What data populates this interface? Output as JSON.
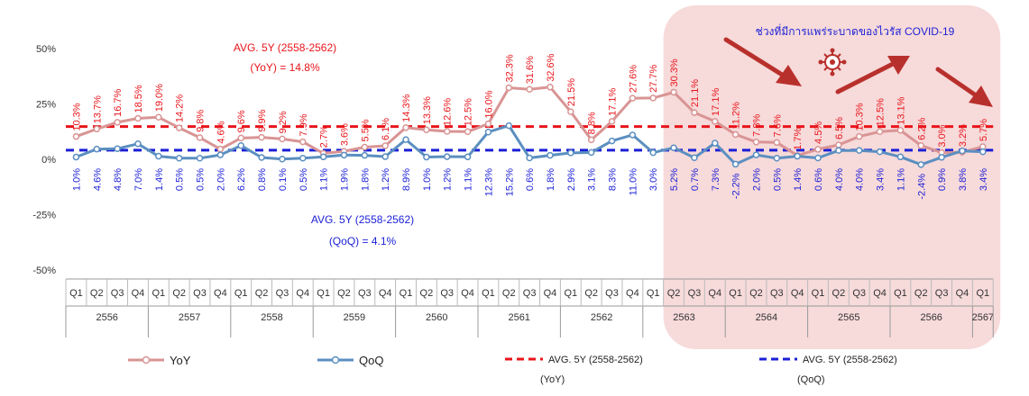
{
  "chart_data": {
    "type": "line",
    "quarters": [
      "Q1",
      "Q2",
      "Q3",
      "Q4",
      "Q1",
      "Q2",
      "Q3",
      "Q4",
      "Q1",
      "Q2",
      "Q3",
      "Q4",
      "Q1",
      "Q2",
      "Q3",
      "Q4",
      "Q1",
      "Q2",
      "Q3",
      "Q4",
      "Q1",
      "Q2",
      "Q3",
      "Q4",
      "Q1",
      "Q2",
      "Q3",
      "Q4",
      "Q1",
      "Q2",
      "Q3",
      "Q4",
      "Q1",
      "Q2",
      "Q3",
      "Q4",
      "Q1",
      "Q2",
      "Q3",
      "Q4",
      "Q1",
      "Q2",
      "Q3",
      "Q4",
      "Q1"
    ],
    "years": [
      {
        "label": "2556",
        "quarters": 4
      },
      {
        "label": "2557",
        "quarters": 4
      },
      {
        "label": "2558",
        "quarters": 4
      },
      {
        "label": "2559",
        "quarters": 4
      },
      {
        "label": "2560",
        "quarters": 4
      },
      {
        "label": "2561",
        "quarters": 4
      },
      {
        "label": "2562",
        "quarters": 4
      },
      {
        "label": "2563",
        "quarters": 4
      },
      {
        "label": "2564",
        "quarters": 4
      },
      {
        "label": "2565",
        "quarters": 4
      },
      {
        "label": "2566",
        "quarters": 4
      },
      {
        "label": "2567",
        "quarters": 1
      }
    ],
    "series": [
      {
        "name": "YoY",
        "color": "#d99494",
        "values": [
          10.3,
          13.7,
          16.7,
          18.5,
          19.0,
          14.2,
          9.8,
          4.6,
          9.6,
          9.9,
          9.2,
          7.9,
          2.7,
          3.6,
          5.5,
          6.1,
          14.3,
          13.3,
          12.6,
          12.5,
          16.0,
          32.3,
          31.6,
          32.6,
          21.5,
          8.8,
          17.1,
          27.6,
          27.7,
          30.3,
          21.1,
          17.1,
          11.2,
          7.8,
          7.6,
          1.7,
          4.5,
          6.5,
          10.3,
          12.5,
          13.1,
          6.2,
          3.0,
          3.2,
          5.7
        ],
        "labels": [
          "10.3%",
          "13.7%",
          "16.7%",
          "18.5%",
          "19.0%",
          "14.2%",
          "9.8%",
          "4.6%",
          "9.6%",
          "9.9%",
          "9.2%",
          "7.9%",
          "2.7%",
          "3.6%",
          "5.5%",
          "6.1%",
          "14.3%",
          "13.3%",
          "12.6%",
          "12.5%",
          "16.0%",
          "32.3%",
          "31.6%",
          "32.6%",
          "21.5%",
          "8.8%",
          "17.1%",
          "27.6%",
          "27.7%",
          "30.3%",
          "21.1%",
          "17.1%",
          "11.2%",
          "7.8%",
          "7.6%",
          "1.7%",
          "4.5%",
          "6.5%",
          "10.3%",
          "12.5%",
          "13.1%",
          "6.2%",
          "3.0%",
          "3.2%",
          "5.7%"
        ]
      },
      {
        "name": "QoQ",
        "color": "#5b8fc0",
        "values": [
          1.0,
          4.6,
          4.8,
          7.0,
          1.4,
          0.5,
          0.5,
          2.0,
          6.2,
          0.8,
          0.1,
          0.5,
          1.1,
          1.9,
          1.8,
          1.2,
          8.9,
          1.0,
          1.2,
          1.1,
          12.3,
          15.2,
          0.6,
          1.8,
          2.9,
          3.1,
          8.3,
          11.0,
          3.0,
          5.2,
          0.7,
          7.3,
          -2.2,
          2.0,
          0.5,
          1.4,
          0.6,
          4.0,
          4.0,
          3.4,
          1.1,
          -2.4,
          0.9,
          3.8,
          3.4
        ],
        "labels": [
          "1.0%",
          "4.6%",
          "4.8%",
          "7.0%",
          "1.4%",
          "0.5%",
          "0.5%",
          "2.0%",
          "6.2%",
          "0.8%",
          "0.1%",
          "0.5%",
          "1.1%",
          "1.9%",
          "1.8%",
          "1.2%",
          "8.9%",
          "1.0%",
          "1.2%",
          "1.1%",
          "12.3%",
          "15.2%",
          "0.6%",
          "1.8%",
          "2.9%",
          "3.1%",
          "8.3%",
          "11.0%",
          "3.0%",
          "5.2%",
          "0.7%",
          "7.3%",
          "-2.2%",
          "2.0%",
          "0.5%",
          "1.4%",
          "0.6%",
          "4.0%",
          "4.0%",
          "3.4%",
          "1.1%",
          "-2.4%",
          "0.9%",
          "3.8%",
          "3.4%"
        ]
      }
    ],
    "averages": [
      {
        "name": "AVG. 5Y (2558-2562)",
        "sub": "(YoY)",
        "value": 14.8,
        "color": "#e8151b",
        "line1": "AVG. 5Y (2558-2562)",
        "line2": "(YoY) = 14.8%"
      },
      {
        "name": "AVG. 5Y (2558-2562)",
        "sub": "(QoQ)",
        "value": 4.1,
        "color": "#1b1fd6",
        "line1": "AVG. 5Y (2558-2562)",
        "line2": "(QoQ) = 4.1%"
      }
    ],
    "ylim": [
      -50,
      50
    ],
    "yticks": [
      50,
      25,
      0,
      -25,
      -50
    ],
    "ytick_labels": [
      "50%",
      "25%",
      "0%",
      "-25%",
      "-50%"
    ],
    "grid": false,
    "legend_position": "bottom",
    "annotation": "ช่วงที่มีการแพร่ระบาดของไวรัส COVID-19",
    "covid_start_index": 29,
    "highlight_color": "#f7dada"
  }
}
